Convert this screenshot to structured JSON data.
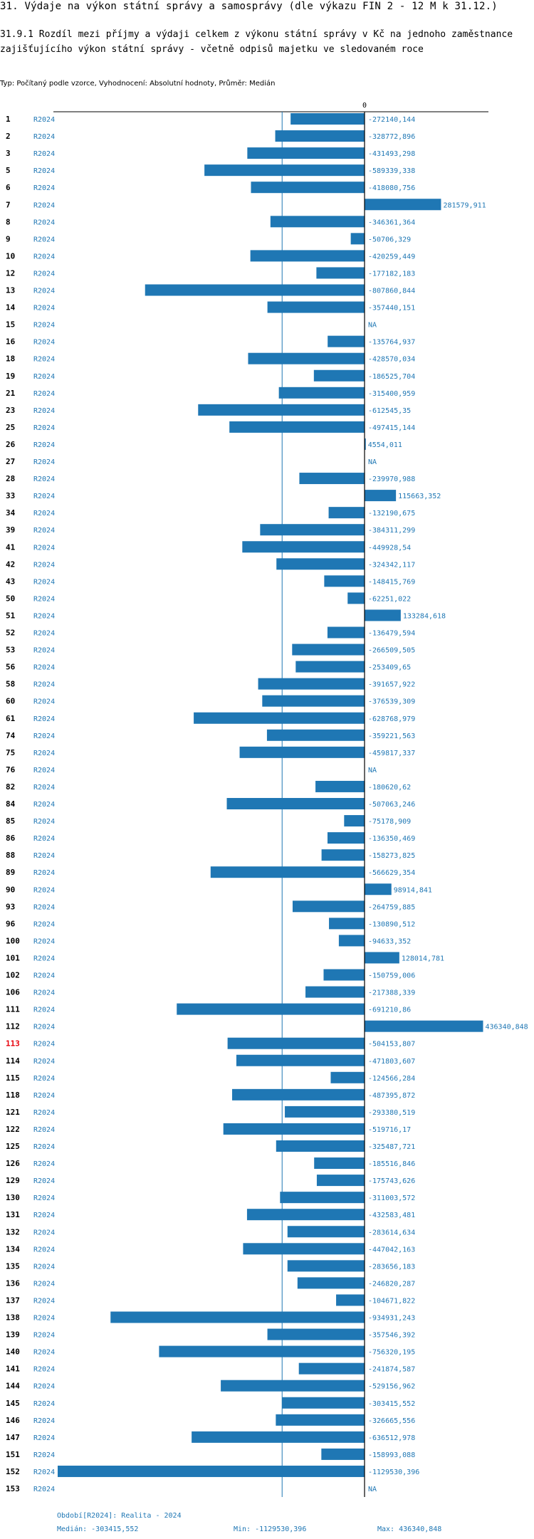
{
  "header": {
    "title": "31. Výdaje na výkon státní správy a samosprávy (dle výkazu FIN 2 - 12 M k 31.12.)",
    "subtitle": "31.9.1 Rozdíl mezi příjmy a výdaji celkem z výkonu státní správy v Kč na jednoho zaměstnance zajišťujícího výkon státní správy - včetně odpisů majetku ve sledovaném roce",
    "typ": "Typ: Počítaný podle vzorce, Vyhodnocení: Absolutní hodnoty, Průměr: Medián"
  },
  "chart_data": {
    "type": "bar",
    "orientation": "horizontal",
    "zero_label": "0",
    "period_label": "R2024",
    "highlight_color": "#e8000b",
    "bar_color": "#1f77b4",
    "median_value": -303415.552,
    "rows": [
      {
        "id": "1",
        "value": -272140.144,
        "label": "-272140,144"
      },
      {
        "id": "2",
        "value": -328772.896,
        "label": "-328772,896"
      },
      {
        "id": "3",
        "value": -431493.298,
        "label": "-431493,298"
      },
      {
        "id": "5",
        "value": -589339.338,
        "label": "-589339,338"
      },
      {
        "id": "6",
        "value": -418080.756,
        "label": "-418080,756"
      },
      {
        "id": "7",
        "value": 281579.911,
        "label": "281579,911"
      },
      {
        "id": "8",
        "value": -346361.364,
        "label": "-346361,364"
      },
      {
        "id": "9",
        "value": -50706.329,
        "label": "-50706,329"
      },
      {
        "id": "10",
        "value": -420259.449,
        "label": "-420259,449"
      },
      {
        "id": "12",
        "value": -177182.183,
        "label": "-177182,183"
      },
      {
        "id": "13",
        "value": -807860.844,
        "label": "-807860,844"
      },
      {
        "id": "14",
        "value": -357440.151,
        "label": "-357440,151"
      },
      {
        "id": "15",
        "value": null,
        "label": "NA"
      },
      {
        "id": "16",
        "value": -135764.937,
        "label": "-135764,937"
      },
      {
        "id": "18",
        "value": -428570.034,
        "label": "-428570,034"
      },
      {
        "id": "19",
        "value": -186525.704,
        "label": "-186525,704"
      },
      {
        "id": "21",
        "value": -315400.959,
        "label": "-315400,959"
      },
      {
        "id": "23",
        "value": -612545.35,
        "label": "-612545,35"
      },
      {
        "id": "25",
        "value": -497415.144,
        "label": "-497415,144"
      },
      {
        "id": "26",
        "value": 4554.011,
        "label": "4554,011"
      },
      {
        "id": "27",
        "value": null,
        "label": "NA"
      },
      {
        "id": "28",
        "value": -239970.988,
        "label": "-239970,988"
      },
      {
        "id": "33",
        "value": 115663.352,
        "label": "115663,352"
      },
      {
        "id": "34",
        "value": -132190.675,
        "label": "-132190,675"
      },
      {
        "id": "39",
        "value": -384311.299,
        "label": "-384311,299"
      },
      {
        "id": "41",
        "value": -449928.54,
        "label": "-449928,54"
      },
      {
        "id": "42",
        "value": -324342.117,
        "label": "-324342,117"
      },
      {
        "id": "43",
        "value": -148415.769,
        "label": "-148415,769"
      },
      {
        "id": "50",
        "value": -62251.022,
        "label": "-62251,022"
      },
      {
        "id": "51",
        "value": 133284.618,
        "label": "133284,618"
      },
      {
        "id": "52",
        "value": -136479.594,
        "label": "-136479,594"
      },
      {
        "id": "53",
        "value": -266509.505,
        "label": "-266509,505"
      },
      {
        "id": "56",
        "value": -253409.65,
        "label": "-253409,65"
      },
      {
        "id": "58",
        "value": -391657.922,
        "label": "-391657,922"
      },
      {
        "id": "60",
        "value": -376539.309,
        "label": "-376539,309"
      },
      {
        "id": "61",
        "value": -628768.979,
        "label": "-628768,979"
      },
      {
        "id": "74",
        "value": -359221.563,
        "label": "-359221,563"
      },
      {
        "id": "75",
        "value": -459817.337,
        "label": "-459817,337"
      },
      {
        "id": "76",
        "value": null,
        "label": "NA"
      },
      {
        "id": "82",
        "value": -180620.62,
        "label": "-180620,62"
      },
      {
        "id": "84",
        "value": -507063.246,
        "label": "-507063,246"
      },
      {
        "id": "85",
        "value": -75178.909,
        "label": "-75178,909"
      },
      {
        "id": "86",
        "value": -136350.469,
        "label": "-136350,469"
      },
      {
        "id": "88",
        "value": -158273.825,
        "label": "-158273,825"
      },
      {
        "id": "89",
        "value": -566629.354,
        "label": "-566629,354"
      },
      {
        "id": "90",
        "value": 98914.841,
        "label": "98914,841"
      },
      {
        "id": "93",
        "value": -264759.885,
        "label": "-264759,885"
      },
      {
        "id": "96",
        "value": -130890.512,
        "label": "-130890,512"
      },
      {
        "id": "100",
        "value": -94633.352,
        "label": "-94633,352"
      },
      {
        "id": "101",
        "value": 128014.781,
        "label": "128014,781"
      },
      {
        "id": "102",
        "value": -150759.006,
        "label": "-150759,006"
      },
      {
        "id": "106",
        "value": -217388.339,
        "label": "-217388,339"
      },
      {
        "id": "111",
        "value": -691210.86,
        "label": "-691210,86"
      },
      {
        "id": "112",
        "value": 436340.848,
        "label": "436340,848"
      },
      {
        "id": "113",
        "value": -504153.807,
        "label": "-504153,807",
        "highlight": true
      },
      {
        "id": "114",
        "value": -471803.607,
        "label": "-471803,607"
      },
      {
        "id": "115",
        "value": -124566.284,
        "label": "-124566,284"
      },
      {
        "id": "118",
        "value": -487395.872,
        "label": "-487395,872"
      },
      {
        "id": "121",
        "value": -293380.519,
        "label": "-293380,519"
      },
      {
        "id": "122",
        "value": -519716.17,
        "label": "-519716,17"
      },
      {
        "id": "125",
        "value": -325487.721,
        "label": "-325487,721"
      },
      {
        "id": "126",
        "value": -185516.846,
        "label": "-185516,846"
      },
      {
        "id": "129",
        "value": -175743.626,
        "label": "-175743,626"
      },
      {
        "id": "130",
        "value": -311003.572,
        "label": "-311003,572"
      },
      {
        "id": "131",
        "value": -432583.481,
        "label": "-432583,481"
      },
      {
        "id": "132",
        "value": -283614.634,
        "label": "-283614,634"
      },
      {
        "id": "134",
        "value": -447042.163,
        "label": "-447042,163"
      },
      {
        "id": "135",
        "value": -283656.183,
        "label": "-283656,183"
      },
      {
        "id": "136",
        "value": -246820.287,
        "label": "-246820,287"
      },
      {
        "id": "137",
        "value": -104671.822,
        "label": "-104671,822"
      },
      {
        "id": "138",
        "value": -934931.243,
        "label": "-934931,243"
      },
      {
        "id": "139",
        "value": -357546.392,
        "label": "-357546,392"
      },
      {
        "id": "140",
        "value": -756320.195,
        "label": "-756320,195"
      },
      {
        "id": "141",
        "value": -241874.587,
        "label": "-241874,587"
      },
      {
        "id": "144",
        "value": -529156.962,
        "label": "-529156,962"
      },
      {
        "id": "145",
        "value": -303415.552,
        "label": "-303415,552"
      },
      {
        "id": "146",
        "value": -326665.556,
        "label": "-326665,556"
      },
      {
        "id": "147",
        "value": -636512.978,
        "label": "-636512,978"
      },
      {
        "id": "151",
        "value": -158993.088,
        "label": "-158993,088"
      },
      {
        "id": "152",
        "value": -1129530.396,
        "label": "-1129530,396"
      },
      {
        "id": "153",
        "value": null,
        "label": "NA"
      }
    ]
  },
  "footer": {
    "period": "Období[R2024]: Realita - 2024",
    "median": "Medián: -303415,552",
    "min": "Min: -1129530,396",
    "max": "Max: 436340,848"
  }
}
